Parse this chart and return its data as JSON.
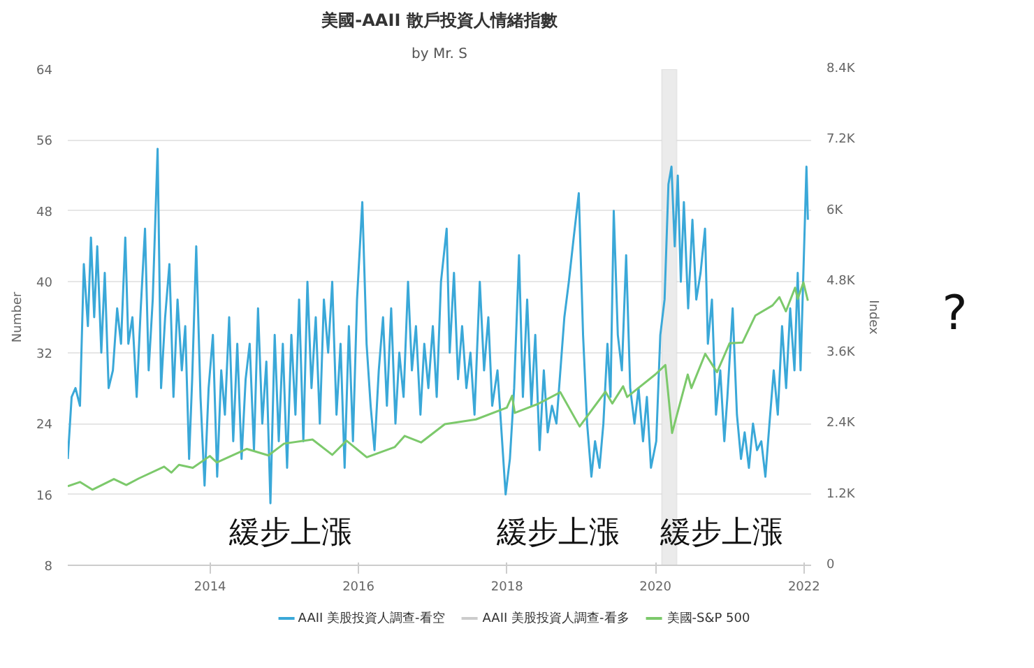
{
  "chart_data": {
    "type": "line",
    "title": "美國-AAII 散戶投資人情緒指數",
    "subtitle": "by Mr. S",
    "ylabel": "Number",
    "y2label": "Index",
    "xlim": [
      "2012-02-01",
      "2022-02-05"
    ],
    "xticks": [
      {
        "value": "2014-01-01",
        "label": "2014"
      },
      {
        "value": "2016-01-01",
        "label": "2016"
      },
      {
        "value": "2018-01-01",
        "label": "2018"
      },
      {
        "value": "2020-01-01",
        "label": "2020"
      },
      {
        "value": "2022-01-01",
        "label": "2022"
      }
    ],
    "ylim": [
      8,
      64
    ],
    "yticks": [
      8,
      16,
      24,
      32,
      40,
      48,
      56,
      64
    ],
    "y2lim": [
      0,
      8400
    ],
    "y2ticks": [
      0,
      {
        "value": 1200,
        "label": "1.2K"
      },
      {
        "value": 2400,
        "label": "2.4K"
      },
      {
        "value": 3600,
        "label": "3.6K"
      },
      {
        "value": 4800,
        "label": "4.8K"
      },
      {
        "value": 6000,
        "label": "6K"
      },
      {
        "value": 7200,
        "label": "7.2K"
      },
      {
        "value": 8400,
        "label": "8.4K"
      }
    ],
    "grid": "y",
    "legend": "bottom",
    "marker": "none",
    "line_style": "solid",
    "bands": [
      {
        "axis": "x",
        "from": "2020-02-01",
        "to": "2020-04-15",
        "color": "#ebebeb"
      }
    ],
    "annotations": [
      "緩步上漲",
      "緩步上漲",
      "緩步上漲",
      "?"
    ],
    "series": [
      {
        "name": "AAII 美股投資人調查-看空",
        "color": "#3aa8d8",
        "x": [
          "2012-02-01",
          "2012-02-20",
          "2012-03-10",
          "2012-04-01",
          "2012-04-20",
          "2012-05-10",
          "2012-05-25",
          "2012-06-10",
          "2012-06-25",
          "2012-07-15",
          "2012-08-01",
          "2012-08-20",
          "2012-09-10",
          "2012-10-01",
          "2012-10-20",
          "2012-11-10",
          "2012-11-25",
          "2012-12-15",
          "2013-01-05",
          "2013-01-25",
          "2013-02-15",
          "2013-03-05",
          "2013-03-25",
          "2013-04-18",
          "2013-05-05",
          "2013-05-25",
          "2013-06-15",
          "2013-07-05",
          "2013-07-25",
          "2013-08-15",
          "2013-09-01",
          "2013-09-20",
          "2013-10-05",
          "2013-10-25",
          "2013-11-15",
          "2013-12-05",
          "2013-12-25",
          "2014-01-15",
          "2014-02-05",
          "2014-02-25",
          "2014-03-15",
          "2014-04-05",
          "2014-04-25",
          "2014-05-15",
          "2014-06-05",
          "2014-06-25",
          "2014-07-15",
          "2014-08-05",
          "2014-08-25",
          "2014-09-15",
          "2014-10-05",
          "2014-10-25",
          "2014-11-15",
          "2014-12-05",
          "2014-12-25",
          "2015-01-15",
          "2015-02-05",
          "2015-02-25",
          "2015-03-15",
          "2015-04-05",
          "2015-04-25",
          "2015-05-15",
          "2015-06-05",
          "2015-06-25",
          "2015-07-15",
          "2015-08-05",
          "2015-08-25",
          "2015-09-15",
          "2015-10-05",
          "2015-10-25",
          "2015-11-15",
          "2015-12-05",
          "2015-12-25",
          "2016-01-20",
          "2016-02-10",
          "2016-03-01",
          "2016-03-20",
          "2016-04-10",
          "2016-05-01",
          "2016-05-20",
          "2016-06-10",
          "2016-07-01",
          "2016-07-20",
          "2016-08-10",
          "2016-09-01",
          "2016-09-20",
          "2016-10-10",
          "2016-11-01",
          "2016-11-20",
          "2016-12-10",
          "2017-01-01",
          "2017-01-20",
          "2017-02-10",
          "2017-03-10",
          "2017-03-25",
          "2017-04-15",
          "2017-05-05",
          "2017-05-25",
          "2017-06-15",
          "2017-07-05",
          "2017-07-25",
          "2017-08-20",
          "2017-09-10",
          "2017-10-01",
          "2017-10-20",
          "2017-11-15",
          "2017-12-25",
          "2018-01-15",
          "2018-02-05",
          "2018-03-01",
          "2018-03-20",
          "2018-04-10",
          "2018-05-01",
          "2018-05-20",
          "2018-06-10",
          "2018-07-01",
          "2018-07-20",
          "2018-08-10",
          "2018-09-01",
          "2018-10-10",
          "2018-11-01",
          "2018-11-25",
          "2018-12-20",
          "2019-01-10",
          "2019-01-30",
          "2019-02-20",
          "2019-03-10",
          "2019-04-01",
          "2019-04-20",
          "2019-05-10",
          "2019-05-25",
          "2019-06-10",
          "2019-06-30",
          "2019-07-20",
          "2019-08-10",
          "2019-08-30",
          "2019-09-20",
          "2019-10-10",
          "2019-11-01",
          "2019-11-20",
          "2019-12-10",
          "2020-01-05",
          "2020-01-25",
          "2020-02-15",
          "2020-03-05",
          "2020-03-20",
          "2020-04-05",
          "2020-04-20",
          "2020-05-05",
          "2020-05-20",
          "2020-06-10",
          "2020-07-01",
          "2020-07-20",
          "2020-08-10",
          "2020-09-01",
          "2020-09-15",
          "2020-10-05",
          "2020-10-25",
          "2020-11-15",
          "2020-12-05",
          "2020-12-20",
          "2021-01-15",
          "2021-02-05",
          "2021-02-25",
          "2021-03-15",
          "2021-04-05",
          "2021-04-25",
          "2021-05-15",
          "2021-06-05",
          "2021-06-25",
          "2021-07-15",
          "2021-08-05",
          "2021-08-25",
          "2021-09-15",
          "2021-10-05",
          "2021-10-25",
          "2021-11-15",
          "2021-12-01",
          "2021-12-15",
          "2022-01-13",
          "2022-01-20"
        ],
        "values": [
          20,
          27,
          28,
          26,
          42,
          35,
          45,
          36,
          44,
          32,
          41,
          28,
          30,
          37,
          33,
          45,
          33,
          36,
          27,
          37,
          46,
          30,
          38,
          55,
          28,
          36,
          42,
          27,
          38,
          30,
          35,
          20,
          29,
          44,
          27,
          17,
          28,
          34,
          18,
          30,
          25,
          36,
          22,
          33,
          20,
          29,
          33,
          21,
          37,
          24,
          31,
          15,
          34,
          22,
          33,
          19,
          34,
          25,
          38,
          22,
          40,
          28,
          36,
          24,
          38,
          32,
          40,
          25,
          33,
          19,
          35,
          22,
          38,
          49,
          33,
          26,
          21,
          30,
          36,
          26,
          37,
          24,
          32,
          27,
          40,
          30,
          35,
          25,
          33,
          28,
          35,
          27,
          40,
          46,
          32,
          41,
          29,
          35,
          28,
          32,
          25,
          40,
          30,
          36,
          26,
          30,
          16,
          20,
          28,
          43,
          27,
          38,
          26,
          34,
          21,
          30,
          23,
          26,
          24,
          36,
          40,
          45,
          50,
          34,
          24,
          18,
          22,
          19,
          24,
          33,
          27,
          48,
          34,
          30,
          43,
          28,
          24,
          28,
          22,
          27,
          19,
          22,
          34,
          38,
          51,
          53,
          44,
          52,
          40,
          49,
          37,
          47,
          38,
          41,
          46,
          33,
          38,
          25,
          30,
          22,
          27,
          37,
          25,
          20,
          23,
          19,
          24,
          21,
          22,
          18,
          24,
          30,
          25,
          35,
          28,
          37,
          30,
          41,
          30,
          53,
          47
        ]
      },
      {
        "name": "AAII 美股投資人調查-看多",
        "color": "#cccccc"
      },
      {
        "name": "美國-S&P 500",
        "color": "#7cc96b",
        "axis": "y2",
        "x": [
          "2012-02-01",
          "2012-04-01",
          "2012-06-01",
          "2012-09-15",
          "2012-11-15",
          "2013-01-15",
          "2013-05-20",
          "2013-06-25",
          "2013-08-01",
          "2013-10-08",
          "2013-12-31",
          "2014-02-03",
          "2014-07-01",
          "2014-10-15",
          "2014-12-31",
          "2015-05-20",
          "2015-08-25",
          "2015-11-03",
          "2016-02-11",
          "2016-06-27",
          "2016-08-15",
          "2016-11-04",
          "2017-03-01",
          "2017-08-01",
          "2017-12-31",
          "2018-01-26",
          "2018-02-08",
          "2018-06-01",
          "2018-09-20",
          "2018-12-24",
          "2019-04-30",
          "2019-06-03",
          "2019-07-26",
          "2019-08-15",
          "2019-12-31",
          "2020-02-19",
          "2020-03-23",
          "2020-06-08",
          "2020-06-26",
          "2020-09-02",
          "2020-10-30",
          "2020-12-31",
          "2021-03-04",
          "2021-05-07",
          "2021-07-30",
          "2021-09-02",
          "2021-10-04",
          "2021-11-18",
          "2021-12-01",
          "2021-12-29",
          "2022-01-20"
        ],
        "values": [
          1340,
          1410,
          1280,
          1460,
          1360,
          1470,
          1670,
          1570,
          1700,
          1650,
          1850,
          1740,
          1970,
          1860,
          2060,
          2130,
          1870,
          2110,
          1830,
          2000,
          2190,
          2080,
          2390,
          2470,
          2670,
          2870,
          2580,
          2730,
          2930,
          2350,
          2940,
          2740,
          3030,
          2850,
          3230,
          3390,
          2240,
          3230,
          3000,
          3580,
          3270,
          3760,
          3770,
          4230,
          4400,
          4540,
          4300,
          4700,
          4510,
          4790,
          4480
        ]
      }
    ]
  }
}
